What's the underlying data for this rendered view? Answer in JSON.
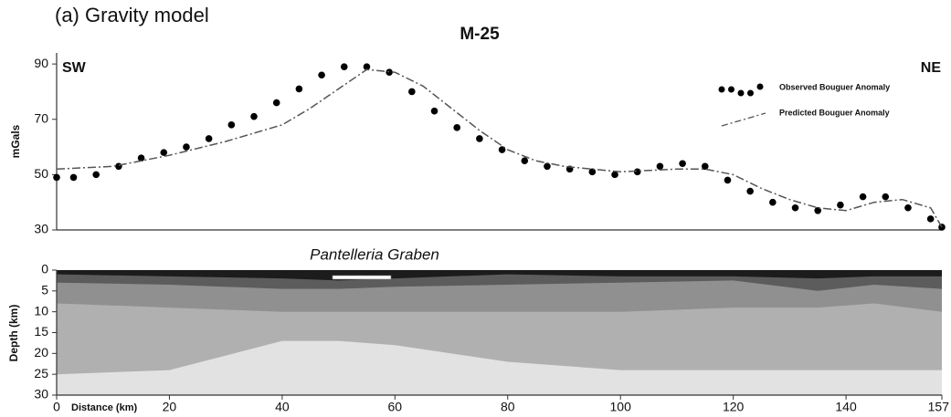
{
  "figure_title": "(a) Gravity model",
  "chart_data": [
    {
      "type": "line",
      "title": "M-25",
      "y_label": "mGals",
      "annotations": [
        "SW",
        "NE"
      ],
      "xlim": [
        0,
        157
      ],
      "ylim": [
        30,
        94
      ],
      "yticks": [
        30,
        50,
        70,
        90
      ],
      "legend": "upper right",
      "series": [
        {
          "name": "Observed Bouguer Anomaly",
          "mode": "markers",
          "color": "#000000",
          "x": [
            0,
            3,
            7,
            11,
            15,
            19,
            23,
            27,
            31,
            35,
            39,
            43,
            47,
            51,
            55,
            59,
            63,
            67,
            71,
            75,
            79,
            83,
            87,
            91,
            95,
            99,
            103,
            107,
            111,
            115,
            119,
            123,
            127,
            131,
            135,
            139,
            143,
            147,
            151,
            155,
            157
          ],
          "values": [
            49,
            49,
            50,
            53,
            56,
            58,
            60,
            63,
            68,
            71,
            76,
            81,
            86,
            89,
            89,
            87,
            80,
            73,
            67,
            63,
            59,
            55,
            53,
            52,
            51,
            50,
            51,
            53,
            54,
            53,
            48,
            44,
            40,
            38,
            37,
            39,
            42,
            42,
            38,
            34,
            31
          ]
        },
        {
          "name": "Predicted Bouguer Anomaly",
          "mode": "dashdot",
          "color": "#555555",
          "x": [
            0,
            10,
            20,
            30,
            40,
            45,
            50,
            55,
            60,
            65,
            70,
            75,
            80,
            85,
            90,
            100,
            110,
            115,
            120,
            125,
            130,
            135,
            140,
            145,
            150,
            155,
            157
          ],
          "values": [
            52,
            53,
            57,
            62,
            68,
            74,
            81,
            88,
            87,
            82,
            74,
            66,
            59,
            55,
            53,
            51,
            52,
            52,
            50,
            45,
            41,
            38,
            37,
            40,
            41,
            38,
            31
          ]
        }
      ]
    },
    {
      "type": "area",
      "y_label": "Depth (km)",
      "x_label": "Distance (km)",
      "annotations": [
        "Pantelleria Graben"
      ],
      "xlim": [
        0,
        157
      ],
      "xticks": [
        0,
        20,
        40,
        60,
        80,
        100,
        120,
        140,
        157
      ],
      "ylim": [
        0,
        30
      ],
      "yticks": [
        0,
        5,
        10,
        15,
        20,
        25,
        30
      ],
      "inverted": true,
      "fill_below": "#e2e2e2",
      "x": [
        0,
        20,
        40,
        50,
        60,
        80,
        100,
        120,
        135,
        145,
        157
      ],
      "series": [
        {
          "color": "#1c1c1c",
          "values": [
            1,
            1.5,
            2,
            2.5,
            2,
            1,
            1.5,
            1.5,
            2,
            1.5,
            1.5
          ]
        },
        {
          "color": "#5c5c5c",
          "values": [
            3,
            3.5,
            4.5,
            4.5,
            4,
            3.5,
            3,
            2.5,
            5,
            3.5,
            4.5
          ]
        },
        {
          "color": "#909090",
          "values": [
            8,
            9,
            10,
            10,
            10,
            10,
            10,
            9,
            9,
            8,
            10
          ]
        },
        {
          "color": "#b0b0b0",
          "values": [
            25,
            24,
            17,
            17,
            18,
            22,
            24,
            24,
            24,
            24,
            24
          ]
        }
      ]
    }
  ]
}
